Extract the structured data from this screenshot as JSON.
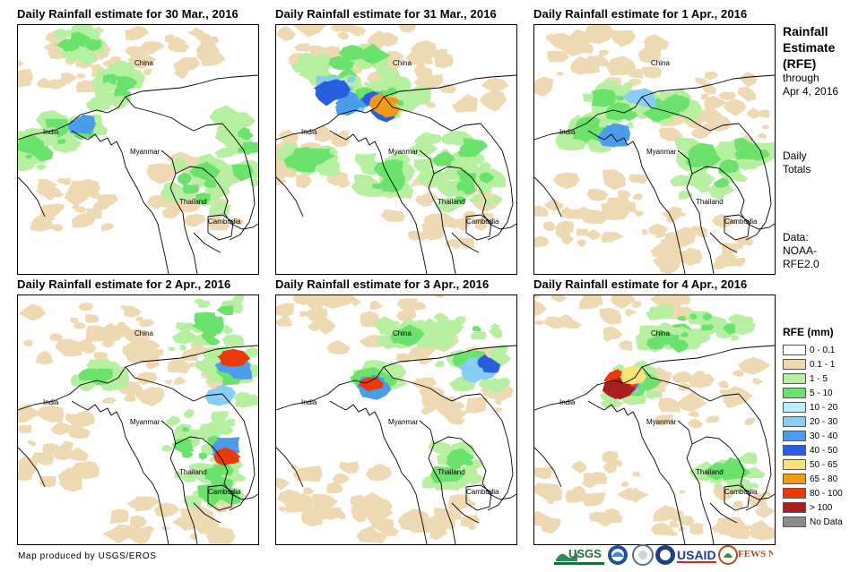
{
  "panels": [
    {
      "title": "Daily Rainfall estimate for 30 Mar., 2016"
    },
    {
      "title": "Daily Rainfall estimate for 31 Mar., 2016"
    },
    {
      "title": "Daily Rainfall estimate for 1 Apr., 2016"
    },
    {
      "title": "Daily Rainfall estimate for 2 Apr., 2016"
    },
    {
      "title": "Daily Rainfall estimate for 3 Apr., 2016"
    },
    {
      "title": "Daily Rainfall estimate for 4 Apr., 2016"
    }
  ],
  "map_labels": {
    "china": "China",
    "india": "India",
    "myanmar": "Myanmar",
    "thailand": "Thailand",
    "cambodia": "Cambodia"
  },
  "side": {
    "title_line1": "Rainfall",
    "title_line2": "Estimate",
    "title_line3": "(RFE)",
    "through": "through",
    "date": "Apr 4, 2016",
    "daily": "Daily",
    "totals": "Totals",
    "data_label": "Data:",
    "data_src1": "NOAA-",
    "data_src2": "RFE2.0"
  },
  "legend": {
    "title": "RFE (mm)",
    "items": [
      {
        "label": "0 - 0.1",
        "color": "#ffffff"
      },
      {
        "label": "0.1 - 1",
        "color": "#efd9b3"
      },
      {
        "label": "1 - 5",
        "color": "#b6efa0"
      },
      {
        "label": "5 - 10",
        "color": "#6be26b"
      },
      {
        "label": "10 - 20",
        "color": "#b8effa"
      },
      {
        "label": "20 - 30",
        "color": "#88cdf5"
      },
      {
        "label": "30 - 40",
        "color": "#4c9cec"
      },
      {
        "label": "40 - 50",
        "color": "#2a5ee0"
      },
      {
        "label": "50 - 65",
        "color": "#f9e37a"
      },
      {
        "label": "65 - 80",
        "color": "#f29a15"
      },
      {
        "label": "80 - 100",
        "color": "#ea3a0c"
      },
      {
        "label": "> 100",
        "color": "#a91f1f"
      },
      {
        "label": "No Data",
        "color": "#8c8c8c"
      }
    ]
  },
  "credit": "Map produced by USGS/EROS",
  "logos": {
    "usgs": "USGS",
    "usaid": "USAID",
    "fewsnet": "FEWS NET"
  }
}
